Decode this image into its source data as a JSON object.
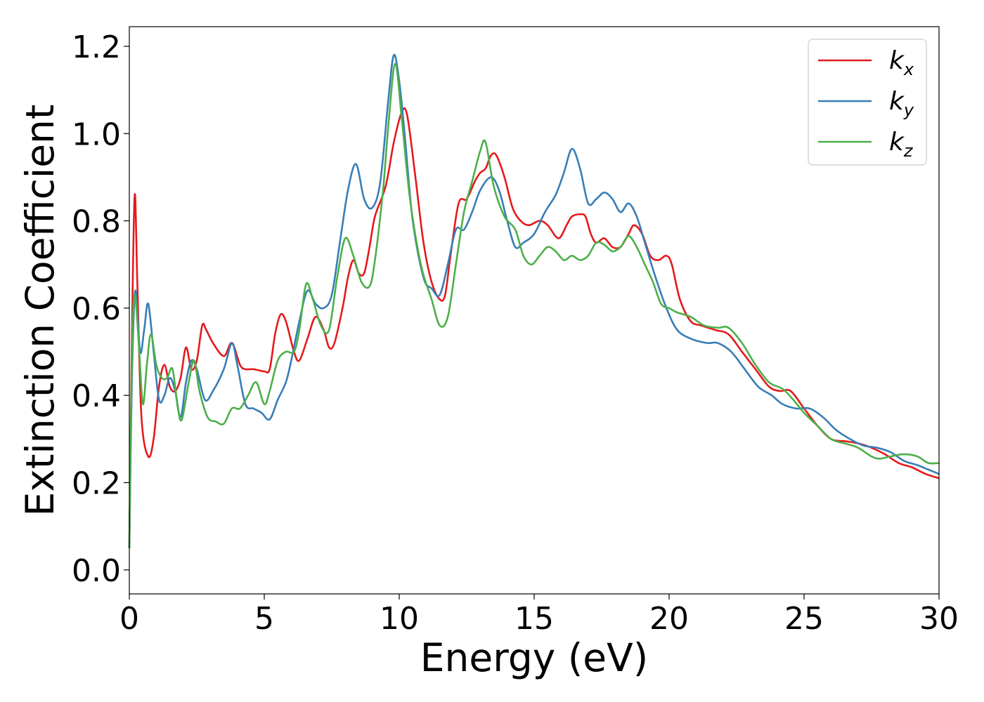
{
  "chart_data": {
    "type": "line",
    "xlabel": "Energy (eV)",
    "ylabel": "Extinction Coefficient",
    "xlim": [
      0,
      30
    ],
    "ylim": [
      -0.055,
      1.245
    ],
    "xticks": [
      0,
      5,
      10,
      15,
      20,
      25,
      30
    ],
    "xtick_labels": [
      "0",
      "5",
      "10",
      "15",
      "20",
      "25",
      "30"
    ],
    "yticks": [
      0.0,
      0.2,
      0.4,
      0.6,
      0.8,
      1.0,
      1.2
    ],
    "ytick_labels": [
      "0.0",
      "0.2",
      "0.4",
      "0.6",
      "0.8",
      "1.0",
      "1.2"
    ],
    "grid": false,
    "legend_position": "upper right",
    "series": [
      {
        "name": "k_x",
        "label_base": "k",
        "label_sub": "x",
        "color": "#e41a1c",
        "points": [
          [
            0.0,
            0.05
          ],
          [
            0.1,
            0.55
          ],
          [
            0.2,
            0.86
          ],
          [
            0.3,
            0.65
          ],
          [
            0.45,
            0.35
          ],
          [
            0.7,
            0.26
          ],
          [
            0.9,
            0.3
          ],
          [
            1.1,
            0.42
          ],
          [
            1.3,
            0.47
          ],
          [
            1.5,
            0.42
          ],
          [
            1.7,
            0.41
          ],
          [
            1.9,
            0.44
          ],
          [
            2.1,
            0.51
          ],
          [
            2.3,
            0.46
          ],
          [
            2.5,
            0.48
          ],
          [
            2.7,
            0.56
          ],
          [
            2.85,
            0.55
          ],
          [
            3.1,
            0.52
          ],
          [
            3.5,
            0.49
          ],
          [
            3.8,
            0.52
          ],
          [
            4.1,
            0.47
          ],
          [
            4.3,
            0.46
          ],
          [
            4.6,
            0.46
          ],
          [
            5.0,
            0.455
          ],
          [
            5.2,
            0.46
          ],
          [
            5.4,
            0.54
          ],
          [
            5.6,
            0.585
          ],
          [
            5.8,
            0.57
          ],
          [
            6.1,
            0.5
          ],
          [
            6.3,
            0.48
          ],
          [
            6.6,
            0.53
          ],
          [
            6.9,
            0.58
          ],
          [
            7.2,
            0.55
          ],
          [
            7.4,
            0.51
          ],
          [
            7.6,
            0.52
          ],
          [
            7.9,
            0.6
          ],
          [
            8.1,
            0.67
          ],
          [
            8.3,
            0.71
          ],
          [
            8.5,
            0.68
          ],
          [
            8.7,
            0.68
          ],
          [
            8.9,
            0.74
          ],
          [
            9.1,
            0.81
          ],
          [
            9.5,
            0.88
          ],
          [
            9.8,
            0.98
          ],
          [
            10.1,
            1.05
          ],
          [
            10.3,
            1.04
          ],
          [
            10.6,
            0.9
          ],
          [
            10.9,
            0.75
          ],
          [
            11.2,
            0.66
          ],
          [
            11.5,
            0.62
          ],
          [
            11.7,
            0.63
          ],
          [
            11.9,
            0.72
          ],
          [
            12.2,
            0.84
          ],
          [
            12.5,
            0.85
          ],
          [
            12.8,
            0.89
          ],
          [
            13.0,
            0.91
          ],
          [
            13.2,
            0.92
          ],
          [
            13.4,
            0.95
          ],
          [
            13.6,
            0.95
          ],
          [
            13.9,
            0.9
          ],
          [
            14.2,
            0.83
          ],
          [
            14.5,
            0.8
          ],
          [
            14.8,
            0.79
          ],
          [
            15.2,
            0.8
          ],
          [
            15.5,
            0.79
          ],
          [
            15.9,
            0.76
          ],
          [
            16.2,
            0.79
          ],
          [
            16.4,
            0.81
          ],
          [
            16.7,
            0.815
          ],
          [
            16.9,
            0.81
          ],
          [
            17.1,
            0.77
          ],
          [
            17.3,
            0.75
          ],
          [
            17.6,
            0.76
          ],
          [
            17.9,
            0.74
          ],
          [
            18.2,
            0.74
          ],
          [
            18.5,
            0.77
          ],
          [
            18.7,
            0.79
          ],
          [
            19.0,
            0.77
          ],
          [
            19.3,
            0.72
          ],
          [
            19.6,
            0.71
          ],
          [
            19.9,
            0.72
          ],
          [
            20.1,
            0.7
          ],
          [
            20.4,
            0.62
          ],
          [
            20.8,
            0.57
          ],
          [
            21.2,
            0.56
          ],
          [
            21.7,
            0.55
          ],
          [
            22.2,
            0.54
          ],
          [
            22.7,
            0.5
          ],
          [
            23.2,
            0.46
          ],
          [
            23.7,
            0.42
          ],
          [
            24.1,
            0.41
          ],
          [
            24.5,
            0.41
          ],
          [
            25.0,
            0.37
          ],
          [
            25.5,
            0.33
          ],
          [
            26.0,
            0.3
          ],
          [
            26.5,
            0.295
          ],
          [
            27.0,
            0.29
          ],
          [
            27.5,
            0.28
          ],
          [
            28.0,
            0.265
          ],
          [
            28.5,
            0.245
          ],
          [
            29.0,
            0.235
          ],
          [
            29.5,
            0.22
          ],
          [
            30.0,
            0.21
          ]
        ]
      },
      {
        "name": "k_y",
        "label_base": "k",
        "label_sub": "y",
        "color": "#377eb8",
        "points": [
          [
            0.0,
            0.05
          ],
          [
            0.1,
            0.45
          ],
          [
            0.22,
            0.64
          ],
          [
            0.4,
            0.5
          ],
          [
            0.55,
            0.55
          ],
          [
            0.7,
            0.61
          ],
          [
            0.9,
            0.5
          ],
          [
            1.1,
            0.39
          ],
          [
            1.3,
            0.4
          ],
          [
            1.5,
            0.44
          ],
          [
            1.7,
            0.41
          ],
          [
            1.9,
            0.35
          ],
          [
            2.1,
            0.43
          ],
          [
            2.3,
            0.48
          ],
          [
            2.5,
            0.46
          ],
          [
            2.8,
            0.39
          ],
          [
            3.1,
            0.41
          ],
          [
            3.5,
            0.46
          ],
          [
            3.8,
            0.52
          ],
          [
            4.0,
            0.47
          ],
          [
            4.3,
            0.38
          ],
          [
            4.6,
            0.37
          ],
          [
            4.9,
            0.36
          ],
          [
            5.2,
            0.345
          ],
          [
            5.5,
            0.39
          ],
          [
            5.8,
            0.43
          ],
          [
            6.0,
            0.48
          ],
          [
            6.3,
            0.57
          ],
          [
            6.6,
            0.64
          ],
          [
            6.9,
            0.61
          ],
          [
            7.2,
            0.6
          ],
          [
            7.5,
            0.63
          ],
          [
            7.8,
            0.75
          ],
          [
            8.1,
            0.87
          ],
          [
            8.4,
            0.93
          ],
          [
            8.7,
            0.85
          ],
          [
            9.0,
            0.83
          ],
          [
            9.3,
            0.89
          ],
          [
            9.6,
            1.08
          ],
          [
            9.8,
            1.18
          ],
          [
            10.0,
            1.12
          ],
          [
            10.2,
            1.0
          ],
          [
            10.5,
            0.8
          ],
          [
            10.9,
            0.67
          ],
          [
            11.2,
            0.645
          ],
          [
            11.5,
            0.63
          ],
          [
            11.8,
            0.7
          ],
          [
            12.1,
            0.78
          ],
          [
            12.4,
            0.78
          ],
          [
            12.7,
            0.82
          ],
          [
            13.0,
            0.87
          ],
          [
            13.4,
            0.9
          ],
          [
            13.7,
            0.87
          ],
          [
            14.0,
            0.8
          ],
          [
            14.3,
            0.74
          ],
          [
            14.6,
            0.75
          ],
          [
            15.0,
            0.77
          ],
          [
            15.4,
            0.82
          ],
          [
            15.8,
            0.86
          ],
          [
            16.1,
            0.91
          ],
          [
            16.4,
            0.965
          ],
          [
            16.7,
            0.92
          ],
          [
            17.0,
            0.84
          ],
          [
            17.3,
            0.85
          ],
          [
            17.6,
            0.865
          ],
          [
            17.9,
            0.85
          ],
          [
            18.2,
            0.82
          ],
          [
            18.5,
            0.84
          ],
          [
            18.8,
            0.81
          ],
          [
            19.1,
            0.75
          ],
          [
            19.5,
            0.67
          ],
          [
            19.9,
            0.6
          ],
          [
            20.3,
            0.55
          ],
          [
            20.8,
            0.53
          ],
          [
            21.4,
            0.52
          ],
          [
            21.8,
            0.52
          ],
          [
            22.3,
            0.5
          ],
          [
            22.8,
            0.46
          ],
          [
            23.3,
            0.42
          ],
          [
            23.8,
            0.4
          ],
          [
            24.2,
            0.38
          ],
          [
            24.7,
            0.37
          ],
          [
            25.2,
            0.37
          ],
          [
            25.7,
            0.35
          ],
          [
            26.2,
            0.32
          ],
          [
            26.7,
            0.3
          ],
          [
            27.2,
            0.285
          ],
          [
            27.7,
            0.28
          ],
          [
            28.2,
            0.27
          ],
          [
            28.7,
            0.25
          ],
          [
            29.2,
            0.24
          ],
          [
            29.6,
            0.23
          ],
          [
            30.0,
            0.22
          ]
        ]
      },
      {
        "name": "k_z",
        "label_base": "k",
        "label_sub": "z",
        "color": "#4daf4a",
        "points": [
          [
            0.0,
            0.05
          ],
          [
            0.1,
            0.5
          ],
          [
            0.2,
            0.63
          ],
          [
            0.35,
            0.52
          ],
          [
            0.5,
            0.38
          ],
          [
            0.65,
            0.47
          ],
          [
            0.8,
            0.54
          ],
          [
            1.0,
            0.47
          ],
          [
            1.2,
            0.44
          ],
          [
            1.4,
            0.44
          ],
          [
            1.6,
            0.46
          ],
          [
            1.8,
            0.37
          ],
          [
            1.95,
            0.345
          ],
          [
            2.2,
            0.43
          ],
          [
            2.4,
            0.48
          ],
          [
            2.6,
            0.41
          ],
          [
            2.9,
            0.35
          ],
          [
            3.2,
            0.34
          ],
          [
            3.5,
            0.335
          ],
          [
            3.8,
            0.37
          ],
          [
            4.1,
            0.37
          ],
          [
            4.4,
            0.4
          ],
          [
            4.7,
            0.43
          ],
          [
            5.0,
            0.38
          ],
          [
            5.2,
            0.41
          ],
          [
            5.5,
            0.48
          ],
          [
            5.8,
            0.5
          ],
          [
            6.1,
            0.5
          ],
          [
            6.3,
            0.55
          ],
          [
            6.55,
            0.655
          ],
          [
            6.8,
            0.62
          ],
          [
            7.1,
            0.56
          ],
          [
            7.4,
            0.55
          ],
          [
            7.7,
            0.67
          ],
          [
            8.0,
            0.76
          ],
          [
            8.3,
            0.72
          ],
          [
            8.6,
            0.66
          ],
          [
            8.9,
            0.65
          ],
          [
            9.1,
            0.71
          ],
          [
            9.4,
            0.87
          ],
          [
            9.6,
            1.02
          ],
          [
            9.85,
            1.16
          ],
          [
            10.1,
            1.03
          ],
          [
            10.4,
            0.85
          ],
          [
            10.8,
            0.7
          ],
          [
            11.2,
            0.62
          ],
          [
            11.5,
            0.56
          ],
          [
            11.8,
            0.58
          ],
          [
            12.1,
            0.7
          ],
          [
            12.4,
            0.82
          ],
          [
            12.7,
            0.89
          ],
          [
            13.0,
            0.96
          ],
          [
            13.2,
            0.98
          ],
          [
            13.5,
            0.88
          ],
          [
            13.9,
            0.81
          ],
          [
            14.3,
            0.78
          ],
          [
            14.6,
            0.72
          ],
          [
            14.9,
            0.7
          ],
          [
            15.2,
            0.72
          ],
          [
            15.5,
            0.74
          ],
          [
            15.8,
            0.73
          ],
          [
            16.1,
            0.71
          ],
          [
            16.4,
            0.72
          ],
          [
            16.7,
            0.71
          ],
          [
            17.0,
            0.72
          ],
          [
            17.3,
            0.75
          ],
          [
            17.6,
            0.745
          ],
          [
            17.9,
            0.73
          ],
          [
            18.2,
            0.74
          ],
          [
            18.5,
            0.765
          ],
          [
            18.8,
            0.74
          ],
          [
            19.1,
            0.7
          ],
          [
            19.4,
            0.66
          ],
          [
            19.7,
            0.61
          ],
          [
            20.0,
            0.6
          ],
          [
            20.3,
            0.59
          ],
          [
            20.8,
            0.58
          ],
          [
            21.3,
            0.56
          ],
          [
            21.8,
            0.555
          ],
          [
            22.2,
            0.555
          ],
          [
            22.7,
            0.52
          ],
          [
            23.2,
            0.47
          ],
          [
            23.7,
            0.43
          ],
          [
            24.2,
            0.415
          ],
          [
            24.6,
            0.39
          ],
          [
            25.0,
            0.36
          ],
          [
            25.5,
            0.33
          ],
          [
            26.0,
            0.3
          ],
          [
            26.5,
            0.29
          ],
          [
            27.0,
            0.28
          ],
          [
            27.5,
            0.26
          ],
          [
            27.8,
            0.255
          ],
          [
            28.2,
            0.26
          ],
          [
            28.7,
            0.265
          ],
          [
            29.2,
            0.26
          ],
          [
            29.6,
            0.245
          ],
          [
            30.0,
            0.245
          ]
        ]
      }
    ]
  }
}
